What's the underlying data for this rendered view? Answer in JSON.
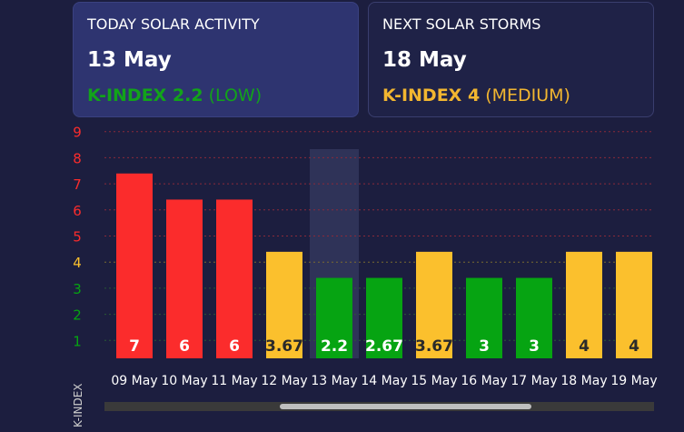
{
  "today": {
    "label": "TODAY SOLAR ACTIVITY",
    "date": "13 May",
    "k_prefix": "K-INDEX 2.2",
    "k_level": " (LOW)",
    "color": "#12a31a"
  },
  "next": {
    "label": "NEXT SOLAR STORMS",
    "date": "18 May",
    "k_prefix": "K-INDEX 4",
    "k_level": " (MEDIUM)",
    "color": "#f2b630"
  },
  "colors": {
    "red": "#fb2c2c",
    "yellow": "#fbc02d",
    "green": "#06a412",
    "highlight": "#2f3358",
    "grid_red": "#8a2a3a",
    "grid_yellow": "#7a6a30",
    "grid_green": "#2a5a34",
    "scrollbar_track": "#3a3a3a",
    "scrollbar_thumb": "#bfbfbf"
  },
  "chart_data": {
    "type": "bar",
    "ylabel": "K-INDEX",
    "ylim": [
      0,
      9
    ],
    "yticks": [
      1,
      2,
      3,
      4,
      5,
      6,
      7,
      8,
      9
    ],
    "highlighted_category": "13 May",
    "categories": [
      "09 May",
      "10 May",
      "11 May",
      "12 May",
      "13 May",
      "14 May",
      "15 May",
      "16 May",
      "17 May",
      "18 May",
      "19 May"
    ],
    "values": [
      7,
      6,
      6,
      3.67,
      2.2,
      2.67,
      3.67,
      3,
      3,
      4,
      4
    ],
    "labels": [
      "7",
      "6",
      "6",
      "3.67",
      "2.2",
      "2.67",
      "3.67",
      "3",
      "3",
      "4",
      "4"
    ],
    "level_colors": [
      "red",
      "red",
      "red",
      "yellow",
      "green",
      "green",
      "yellow",
      "green",
      "green",
      "yellow",
      "yellow"
    ]
  }
}
